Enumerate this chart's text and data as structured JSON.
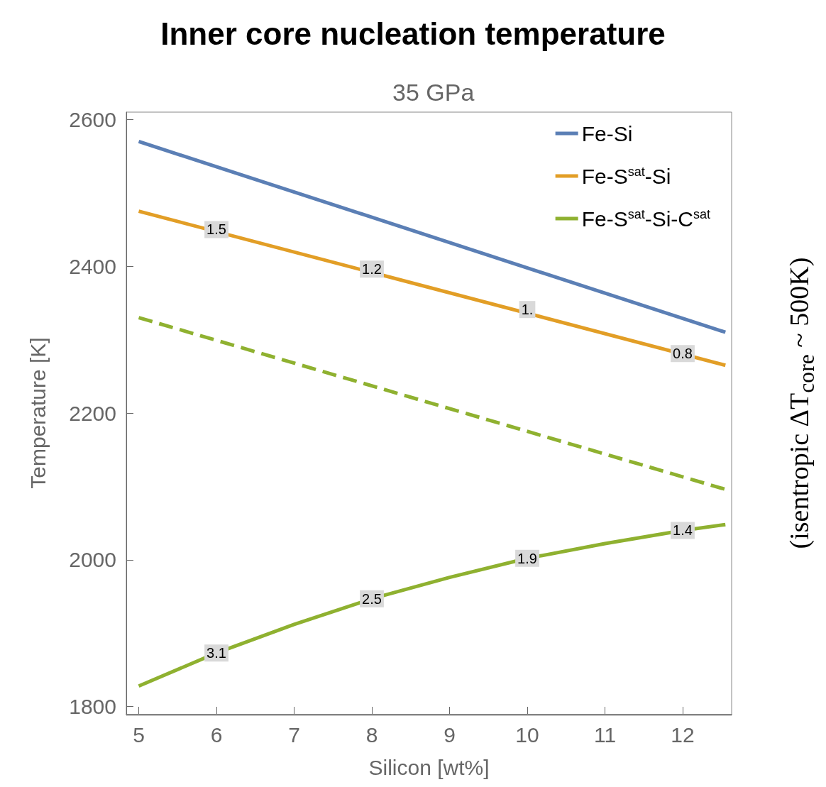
{
  "chart_data": {
    "type": "line",
    "title": "Inner core nucleation temperature",
    "subtitle": "35 GPa",
    "xlabel": "Silicon [wt%]",
    "ylabel": "Temperature [K]",
    "xlim": [
      4.84,
      12.63
    ],
    "xticks": [
      5,
      6,
      7,
      8,
      9,
      10,
      11,
      12
    ],
    "ylim": [
      1790,
      2610
    ],
    "yticks": [
      1800,
      2000,
      2200,
      2400,
      2600
    ],
    "series": [
      {
        "name": "Fe-Si",
        "color": "#5b7fb5",
        "x": [
          5,
          12.55
        ],
        "values": [
          2570,
          2310
        ]
      },
      {
        "name": "Fe-S$^{sat}$-Si",
        "color": "#e29e26",
        "x": [
          5,
          12.55
        ],
        "values": [
          2475,
          2265
        ]
      },
      {
        "name": "Fe-S$^{sat}$-Si-C$^{sat}$",
        "color": "#8fb130",
        "x": [
          5,
          6,
          7,
          8,
          9,
          10,
          11,
          12,
          12.55
        ],
        "values": [
          1828,
          1873,
          1912,
          1947,
          1976,
          2002,
          2022,
          2040,
          2048
        ]
      },
      {
        "color": "#8fb130",
        "line_style": "dashed",
        "x": [
          5,
          12.55
        ],
        "values": [
          2330,
          2096
        ]
      }
    ],
    "annotations": [
      {
        "text": "1.5",
        "x": 6,
        "y": 2450
      },
      {
        "text": "1.2",
        "x": 8,
        "y": 2396
      },
      {
        "text": "1.",
        "x": 10,
        "y": 2341
      },
      {
        "text": "0.8",
        "x": 12,
        "y": 2281
      },
      {
        "text": "3.1",
        "x": 6,
        "y": 1873
      },
      {
        "text": "2.5",
        "x": 8,
        "y": 1947
      },
      {
        "text": "1.9",
        "x": 10,
        "y": 2002
      },
      {
        "text": "1.4",
        "x": 12,
        "y": 2040
      },
      "(isentropic ΔT$_{core}$ ~ 500K)"
    ],
    "legend": "top right",
    "grid": false,
    "marker": "none",
    "line_style": "solid"
  }
}
